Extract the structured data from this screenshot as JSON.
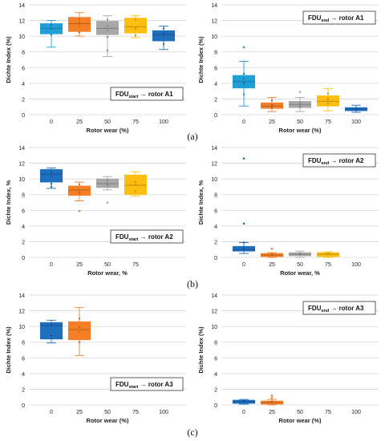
{
  "chart_data": [
    {
      "id": "a-left",
      "type": "box",
      "ylabel": "Dichte Index (%)",
      "xlabel": "Rotor wear (%)",
      "ylim": [
        0,
        14
      ],
      "yticks": [
        0,
        2,
        4,
        6,
        8,
        10,
        12,
        14
      ],
      "grid": true,
      "label_main": "FDU",
      "label_sub": "start",
      "label_rest": "→ rotor A1",
      "label_pos": "bottom-right",
      "categories": [
        "0",
        "25",
        "50",
        "75",
        "100"
      ],
      "boxes": [
        {
          "color": "#1f9fd8",
          "q1": 10.3,
          "median": 11.0,
          "q3": 11.6,
          "min": 8.6,
          "max": 12.0,
          "mean": 11.0,
          "outliers": [],
          "points": [
            10.2,
            11.1,
            11.5
          ]
        },
        {
          "color": "#f57f27",
          "q1": 10.6,
          "median": 11.6,
          "q3": 12.4,
          "min": 10.0,
          "max": 13.0,
          "mean": 11.5,
          "outliers": [],
          "points": [
            10.5,
            11.8,
            12.2
          ]
        },
        {
          "color": "#a8a8a8",
          "q1": 10.2,
          "median": 11.0,
          "q3": 11.9,
          "min": 7.4,
          "max": 12.6,
          "mean": 10.8,
          "outliers": [],
          "points": [
            8.2,
            9.9,
            11.3,
            12.1
          ]
        },
        {
          "color": "#fcbe10",
          "q1": 10.4,
          "median": 11.2,
          "q3": 12.3,
          "min": 9.8,
          "max": 12.6,
          "mean": 11.0,
          "outliers": [],
          "points": [
            10.1,
            11.0,
            12.1
          ]
        },
        {
          "color": "#1f6fbf",
          "q1": 9.4,
          "median": 10.2,
          "q3": 10.7,
          "min": 8.3,
          "max": 11.3,
          "mean": 10.0,
          "outliers": [],
          "points": [
            9.0,
            10.4,
            11.0
          ]
        }
      ]
    },
    {
      "id": "a-right",
      "type": "box",
      "ylabel": "Dichte Index (%)",
      "xlabel": "Rotor wear (%)",
      "ylim": [
        0,
        14
      ],
      "yticks": [
        0,
        2,
        4,
        6,
        8,
        10,
        12,
        14
      ],
      "grid": true,
      "label_main": "FDU",
      "label_sub": "end",
      "label_rest": "→ rotor A1",
      "label_pos": "top-right",
      "categories": [
        "0",
        "25",
        "50",
        "75",
        "100"
      ],
      "boxes": [
        {
          "color": "#1f9fd8",
          "q1": 3.4,
          "median": 4.2,
          "q3": 5.0,
          "min": 1.1,
          "max": 6.8,
          "mean": 4.2,
          "outliers": [
            8.6
          ],
          "points": [
            2.6,
            3.9,
            4.6,
            5.2
          ]
        },
        {
          "color": "#f57f27",
          "q1": 0.8,
          "median": 1.1,
          "q3": 1.5,
          "min": 0.4,
          "max": 2.2,
          "mean": 1.1,
          "outliers": [],
          "points": [
            0.9,
            1.3,
            1.8
          ]
        },
        {
          "color": "#a8a8a8",
          "q1": 0.9,
          "median": 1.3,
          "q3": 1.7,
          "min": 0.4,
          "max": 2.2,
          "mean": 1.3,
          "outliers": [
            2.9
          ],
          "points": [
            1.0,
            1.5
          ]
        },
        {
          "color": "#fcbe10",
          "q1": 1.1,
          "median": 1.7,
          "q3": 2.4,
          "min": 0.5,
          "max": 3.3,
          "mean": 1.8,
          "outliers": [],
          "points": [
            1.4,
            2.0,
            2.7
          ]
        },
        {
          "color": "#1f6fbf",
          "q1": 0.5,
          "median": 0.7,
          "q3": 0.9,
          "min": 0.3,
          "max": 1.2,
          "mean": 0.7,
          "outliers": [],
          "points": [
            0.6
          ]
        }
      ]
    },
    {
      "id": "b-left",
      "type": "box",
      "ylabel": "Dichte Index, %",
      "xlabel": "Rotor wear, %",
      "ylim": [
        0,
        14
      ],
      "yticks": [
        0,
        2,
        4,
        6,
        8,
        10,
        12,
        14
      ],
      "grid": true,
      "label_main": "FDU",
      "label_sub": "start",
      "label_rest": "→ rotor  A2",
      "label_pos": "bottom-right",
      "categories": [
        "0",
        "25",
        "50",
        "75"
      ],
      "boxes": [
        {
          "color": "#1f6fbf",
          "q1": 9.6,
          "median": 10.6,
          "q3": 11.2,
          "min": 8.8,
          "max": 11.4,
          "mean": 10.4,
          "outliers": [],
          "points": [
            9.0,
            9.4,
            10.9
          ]
        },
        {
          "color": "#f57f27",
          "q1": 7.9,
          "median": 8.6,
          "q3": 9.1,
          "min": 7.2,
          "max": 9.6,
          "mean": 8.5,
          "outliers": [
            5.9
          ],
          "points": [
            8.2,
            9.3
          ]
        },
        {
          "color": "#a8a8a8",
          "q1": 8.9,
          "median": 9.4,
          "q3": 10.0,
          "min": 8.6,
          "max": 10.3,
          "mean": 9.4,
          "outliers": [
            7.0
          ],
          "points": [
            9.2,
            9.8
          ]
        },
        {
          "color": "#fcbe10",
          "q1": 8.0,
          "median": 9.2,
          "q3": 10.5,
          "min": 7.8,
          "max": 10.9,
          "mean": 9.3,
          "outliers": [],
          "points": [
            8.4,
            9.6
          ]
        }
      ]
    },
    {
      "id": "b-right",
      "type": "box",
      "ylabel": "Dichte Index, %",
      "xlabel": "Rotor wear, %",
      "ylim": [
        0,
        14
      ],
      "yticks": [
        0,
        2,
        4,
        6,
        8,
        10,
        12,
        14
      ],
      "grid": true,
      "label_main": "FDU",
      "label_sub": "end",
      "label_rest": "→ rotor  A2",
      "label_pos": "top-right",
      "categories": [
        "0",
        "25",
        "50",
        "75",
        "100"
      ],
      "boxes": [
        {
          "color": "#1f6fbf",
          "q1": 0.8,
          "median": 1.0,
          "q3": 1.4,
          "min": 0.5,
          "max": 1.9,
          "mean": 1.1,
          "outliers": [
            4.3,
            12.6
          ],
          "points": [
            1.2,
            1.9
          ]
        },
        {
          "color": "#f57f27",
          "q1": 0.1,
          "median": 0.3,
          "q3": 0.5,
          "min": 0.0,
          "max": 0.6,
          "mean": 0.3,
          "outliers": [
            1.1
          ],
          "points": [
            0.4
          ]
        },
        {
          "color": "#a8a8a8",
          "q1": 0.2,
          "median": 0.4,
          "q3": 0.6,
          "min": 0.0,
          "max": 0.8,
          "mean": 0.4,
          "outliers": [],
          "points": [
            0.5
          ]
        },
        {
          "color": "#fcbe10",
          "q1": 0.1,
          "median": 0.4,
          "q3": 0.6,
          "min": 0.0,
          "max": 0.7,
          "mean": 0.4,
          "outliers": [],
          "points": [
            0.5
          ]
        },
        null
      ]
    },
    {
      "id": "c-left",
      "type": "box",
      "ylabel": "Dichte Index (%)",
      "xlabel": "Rotor wear (%)",
      "ylim": [
        0,
        14
      ],
      "yticks": [
        0,
        2,
        4,
        6,
        8,
        10,
        12,
        14
      ],
      "grid": true,
      "label_main": "FDU",
      "label_sub": "start",
      "label_rest": "→ rotor A3",
      "label_pos": "bottom-right",
      "categories": [
        "0",
        "25",
        "50",
        "75",
        "100"
      ],
      "boxes": [
        {
          "color": "#1f6fbf",
          "q1": 8.4,
          "median": 10.1,
          "q3": 10.5,
          "min": 7.9,
          "max": 10.8,
          "mean": 9.9,
          "outliers": [],
          "points": [
            8.8,
            10.3
          ]
        },
        {
          "color": "#f57f27",
          "q1": 8.3,
          "median": 9.6,
          "q3": 10.6,
          "min": 6.3,
          "max": 12.4,
          "mean": 9.4,
          "outliers": [],
          "points": [
            8.0,
            9.9,
            11.0
          ]
        },
        null,
        null,
        null
      ]
    },
    {
      "id": "c-right",
      "type": "box",
      "ylabel": "Dichte Index (%)",
      "xlabel": "Rotor wear (%)",
      "ylim": [
        0,
        14
      ],
      "yticks": [
        0,
        2,
        4,
        6,
        8,
        10,
        12,
        14
      ],
      "grid": true,
      "label_main": "FDU",
      "label_sub": "end",
      "label_rest": "→ rotor A3",
      "label_pos": "top-right",
      "categories": [
        "0",
        "25",
        "50",
        "75",
        "100"
      ],
      "boxes": [
        {
          "color": "#1f6fbf",
          "q1": 0.2,
          "median": 0.4,
          "q3": 0.6,
          "min": 0.1,
          "max": 0.7,
          "mean": 0.4,
          "outliers": [],
          "points": [
            0.5
          ]
        },
        {
          "color": "#f57f27",
          "q1": 0.1,
          "median": 0.3,
          "q3": 0.5,
          "min": 0.0,
          "max": 0.7,
          "mean": 0.3,
          "outliers": [
            1.2,
            0.9
          ],
          "points": [
            0.4
          ]
        },
        null,
        null,
        null
      ]
    }
  ],
  "captions": {
    "a": "(a)",
    "b": "(b)",
    "c": "(c)"
  }
}
